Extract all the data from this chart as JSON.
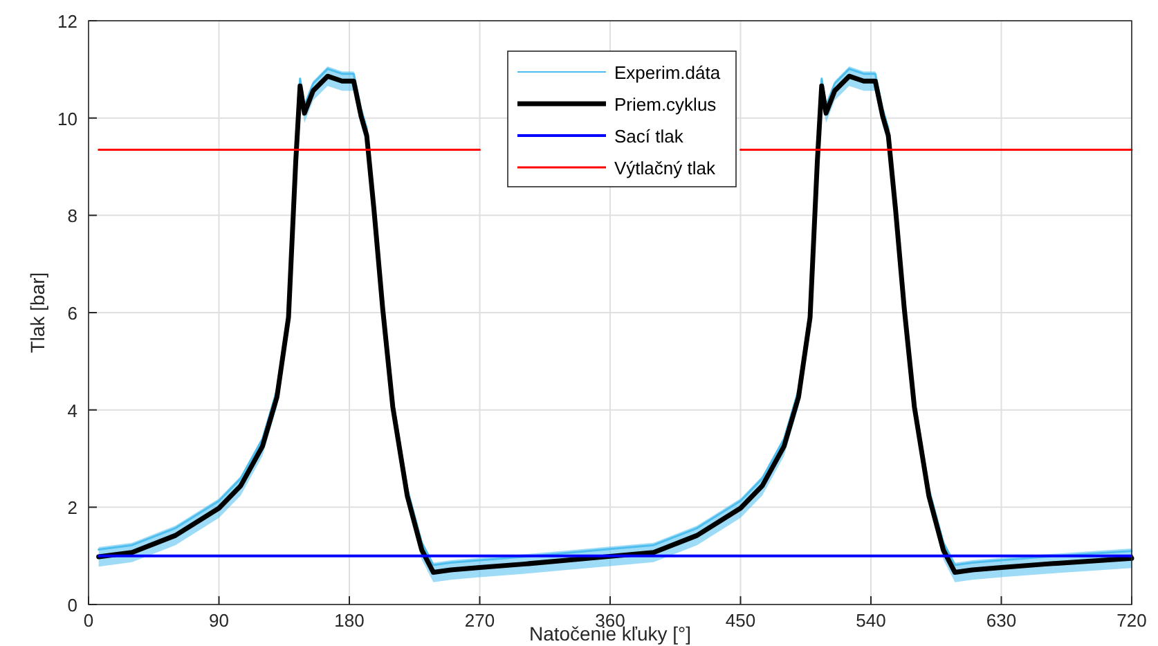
{
  "chart_data": {
    "type": "line",
    "xlabel": "Natočenie kľuky [°]",
    "ylabel": "Tlak [bar]",
    "xlim": [
      0,
      720
    ],
    "xticks": [
      0,
      90,
      180,
      270,
      360,
      450,
      540,
      630,
      720
    ],
    "ylim": [
      0,
      12
    ],
    "yticks": [
      0,
      2,
      4,
      6,
      8,
      10,
      12
    ],
    "grid": true,
    "legend": "top",
    "marker": "none",
    "line_style": "solid",
    "x": [
      7,
      30,
      60,
      90,
      105,
      120,
      130,
      138,
      143,
      146,
      149,
      155,
      165,
      175,
      183,
      188,
      192,
      197,
      203,
      210,
      220,
      230,
      238,
      250,
      270,
      300,
      330,
      360,
      390,
      420,
      450,
      465,
      480,
      490,
      498,
      503,
      506,
      509,
      515,
      525,
      535,
      543,
      548,
      552,
      557,
      563,
      570,
      580,
      590,
      598,
      610,
      630,
      660,
      690,
      720
    ],
    "series": [
      {
        "name": "Experim.dáta",
        "color": "#4dbeee",
        "values": [
          1.13,
          1.22,
          1.57,
          2.13,
          2.59,
          3.4,
          4.41,
          6.05,
          9.25,
          10.81,
          10.25,
          10.71,
          11.01,
          10.91,
          10.91,
          10.2,
          9.79,
          8.27,
          6.24,
          4.21,
          2.38,
          1.27,
          0.81,
          0.86,
          0.91,
          0.98,
          1.06,
          1.14,
          1.22,
          1.57,
          2.13,
          2.59,
          3.4,
          4.41,
          6.05,
          9.25,
          10.81,
          10.25,
          10.71,
          11.01,
          10.91,
          10.91,
          10.2,
          9.79,
          8.27,
          6.24,
          4.21,
          2.38,
          1.27,
          0.81,
          0.86,
          0.91,
          0.98,
          1.04,
          1.1
        ],
        "lower": [
          0.78,
          0.87,
          1.22,
          1.78,
          2.24,
          3.05,
          4.06,
          5.7,
          8.9,
          10.46,
          9.9,
          10.36,
          10.66,
          10.56,
          10.56,
          9.85,
          9.44,
          7.92,
          5.89,
          3.86,
          2.03,
          0.92,
          0.46,
          0.51,
          0.56,
          0.63,
          0.71,
          0.79,
          0.87,
          1.22,
          1.78,
          2.24,
          3.05,
          4.06,
          5.7,
          8.9,
          10.46,
          9.9,
          10.36,
          10.66,
          10.56,
          10.56,
          9.85,
          9.44,
          7.92,
          5.89,
          3.86,
          2.03,
          0.92,
          0.46,
          0.51,
          0.56,
          0.63,
          0.69,
          0.75
        ],
        "upper": [
          1.18,
          1.27,
          1.62,
          2.18,
          2.64,
          3.45,
          4.46,
          6.1,
          9.3,
          10.86,
          10.3,
          10.76,
          11.06,
          10.96,
          10.96,
          10.25,
          9.84,
          8.32,
          6.29,
          4.26,
          2.43,
          1.32,
          0.86,
          0.91,
          0.96,
          1.03,
          1.11,
          1.19,
          1.27,
          1.62,
          2.18,
          2.64,
          3.45,
          4.46,
          6.1,
          9.3,
          10.86,
          10.3,
          10.76,
          11.06,
          10.96,
          10.96,
          10.25,
          9.84,
          8.32,
          6.29,
          4.26,
          2.43,
          1.32,
          0.86,
          0.91,
          0.96,
          1.03,
          1.09,
          1.15
        ]
      },
      {
        "name": "Priem.cyklus",
        "color": "#000000",
        "values": [
          0.98,
          1.07,
          1.42,
          1.98,
          2.44,
          3.25,
          4.26,
          5.9,
          9.1,
          10.66,
          10.1,
          10.56,
          10.86,
          10.76,
          10.76,
          10.05,
          9.64,
          8.12,
          6.09,
          4.06,
          2.23,
          1.12,
          0.66,
          0.71,
          0.76,
          0.83,
          0.91,
          0.99,
          1.07,
          1.42,
          1.98,
          2.44,
          3.25,
          4.26,
          5.9,
          9.1,
          10.66,
          10.1,
          10.56,
          10.86,
          10.76,
          10.76,
          10.05,
          9.64,
          8.12,
          6.09,
          4.06,
          2.23,
          1.12,
          0.66,
          0.71,
          0.76,
          0.83,
          0.89,
          0.95
        ]
      },
      {
        "name": "Sací tlak",
        "color": "#0000ff",
        "values": [
          1.0,
          1.0,
          1.0,
          1.0,
          1.0,
          1.0,
          1.0,
          1.0,
          1.0,
          1.0,
          1.0,
          1.0,
          1.0,
          1.0,
          1.0,
          1.0,
          1.0,
          1.0,
          1.0,
          1.0,
          1.0,
          1.0,
          1.0,
          1.0,
          1.0,
          1.0,
          1.0,
          1.0,
          1.0,
          1.0,
          1.0,
          1.0,
          1.0,
          1.0,
          1.0,
          1.0,
          1.0,
          1.0,
          1.0,
          1.0,
          1.0,
          1.0,
          1.0,
          1.0,
          1.0,
          1.0,
          1.0,
          1.0,
          1.0,
          1.0,
          1.0,
          1.0,
          1.0,
          1.0,
          1.0
        ]
      },
      {
        "name": "Výtlačný tlak",
        "color": "#ff0000",
        "values": [
          9.35,
          9.35,
          9.35,
          9.35,
          9.35,
          9.35,
          9.35,
          9.35,
          9.35,
          9.35,
          9.35,
          9.35,
          9.35,
          9.35,
          9.35,
          9.35,
          9.35,
          9.35,
          9.35,
          9.35,
          9.35,
          9.35,
          9.35,
          9.35,
          9.35,
          null,
          null,
          null,
          null,
          null,
          9.35,
          9.35,
          9.35,
          9.35,
          9.35,
          9.35,
          9.35,
          9.35,
          9.35,
          9.35,
          9.35,
          9.35,
          9.35,
          9.35,
          9.35,
          9.35,
          9.35,
          9.35,
          9.35,
          9.35,
          9.35,
          9.35,
          9.35,
          9.35,
          9.35
        ]
      }
    ]
  }
}
